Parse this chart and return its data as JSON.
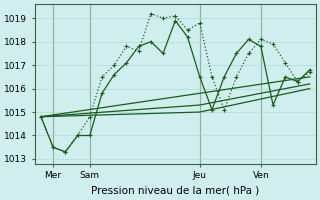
{
  "xlabel": "Pression niveau de la mer( hPa )",
  "background_color": "#d0eeee",
  "grid_color": "#b0d8d8",
  "line_color": "#1a5c1a",
  "ylim": [
    1012.8,
    1019.6
  ],
  "xlim": [
    -0.5,
    22.5
  ],
  "yticks": [
    1013,
    1014,
    1015,
    1016,
    1017,
    1018,
    1019
  ],
  "xtick_positions": [
    1,
    4,
    13,
    18
  ],
  "xtick_labels": [
    "Mer",
    "Sam",
    "Jeu",
    "Ven"
  ],
  "day_lines": [
    1,
    4,
    13,
    18
  ],
  "series": [
    {
      "x": [
        0,
        1,
        2,
        3,
        4,
        5,
        6,
        7,
        8,
        9,
        10,
        11,
        12,
        13,
        14,
        15,
        16,
        17,
        18,
        19,
        20,
        21,
        22
      ],
      "y": [
        1014.8,
        1013.5,
        1013.3,
        1014.0,
        1014.8,
        1016.5,
        1017.0,
        1017.8,
        1017.6,
        1019.2,
        1019.0,
        1019.1,
        1018.5,
        1018.8,
        1016.5,
        1015.1,
        1016.5,
        1017.5,
        1018.1,
        1017.9,
        1017.1,
        1016.3,
        1016.7
      ],
      "style": "dotted",
      "marker": "+"
    },
    {
      "x": [
        0,
        1,
        2,
        3,
        4,
        5,
        6,
        7,
        8,
        9,
        10,
        11,
        12,
        13,
        14,
        15,
        16,
        17,
        18,
        19,
        20,
        21,
        22
      ],
      "y": [
        1014.8,
        1013.5,
        1013.3,
        1014.0,
        1014.0,
        1015.8,
        1016.6,
        1017.1,
        1017.8,
        1018.0,
        1017.5,
        1018.9,
        1018.2,
        1016.5,
        1015.1,
        1016.5,
        1017.5,
        1018.1,
        1017.8,
        1015.3,
        1016.5,
        1016.3,
        1016.8
      ],
      "style": "solid",
      "marker": "+"
    },
    {
      "x": [
        0,
        13,
        22
      ],
      "y": [
        1014.8,
        1015.8,
        1016.5
      ],
      "style": "solid",
      "marker": null
    },
    {
      "x": [
        0,
        13,
        22
      ],
      "y": [
        1014.8,
        1015.3,
        1016.2
      ],
      "style": "solid",
      "marker": null
    },
    {
      "x": [
        0,
        13,
        22
      ],
      "y": [
        1014.8,
        1015.0,
        1016.0
      ],
      "style": "solid",
      "marker": null
    }
  ]
}
